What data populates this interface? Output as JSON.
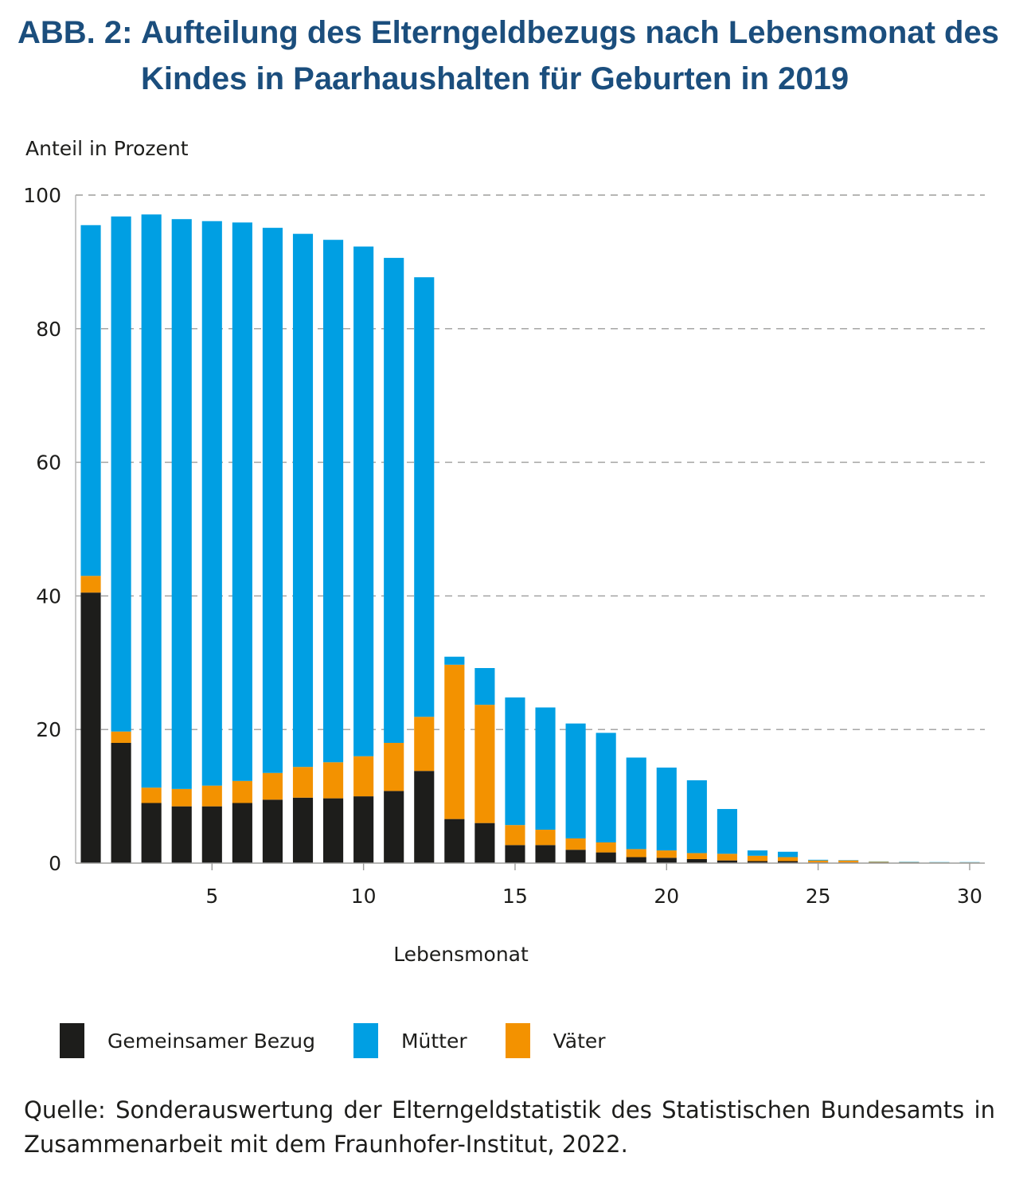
{
  "figure": {
    "label": "ABB. 2:",
    "title": "Aufteilung des Elterngeldbezugs nach Lebensmonat des Kindes in Paarhaushalten für Geburten in 2019",
    "source": "Quelle: Sonderauswertung der Elterngeldstatistik des Statistischen Bundesamts in Zusammenarbeit mit dem Fraunhofer-Institut, 2022."
  },
  "chart_data": {
    "type": "bar",
    "stacked": true,
    "title": "",
    "ylabel": "Anteil in Prozent",
    "xlabel": "Lebensmonat",
    "ylim": [
      0,
      100
    ],
    "xlim": [
      0.5,
      30.5
    ],
    "yticks": [
      0,
      20,
      40,
      60,
      80,
      100
    ],
    "xticks": [
      5,
      10,
      15,
      20,
      25,
      30
    ],
    "grid": "horizontal dashed",
    "legend_position": "bottom",
    "x": [
      1,
      2,
      3,
      4,
      5,
      6,
      7,
      8,
      9,
      10,
      11,
      12,
      13,
      14,
      15,
      16,
      17,
      18,
      19,
      20,
      21,
      22,
      23,
      24,
      25,
      26,
      27,
      28,
      29,
      30
    ],
    "series": [
      {
        "name": "Gemeinsamer Bezug",
        "color": "#1d1d1b",
        "values": [
          40.5,
          18,
          9,
          8.5,
          8.5,
          9,
          9.5,
          9.8,
          9.7,
          10,
          10.8,
          13.8,
          6.6,
          6,
          2.7,
          2.7,
          2,
          1.6,
          0.9,
          0.8,
          0.6,
          0.4,
          0.3,
          0.3,
          0.1,
          0.1,
          0.1,
          0.1,
          0.05,
          0.05
        ]
      },
      {
        "name": "Väter",
        "color": "#f39200",
        "values": [
          2.5,
          1.7,
          2.3,
          2.6,
          3.1,
          3.3,
          4,
          4.6,
          5.4,
          6,
          7.2,
          8.1,
          23.1,
          17.7,
          3,
          2.3,
          1.7,
          1.5,
          1.2,
          1.1,
          0.9,
          1,
          0.8,
          0.6,
          0.3,
          0.3,
          0.1,
          0.05,
          0.05,
          0.05
        ]
      },
      {
        "name": "Mütter",
        "color": "#009fe3",
        "values": [
          52.5,
          77.1,
          85.8,
          85.3,
          84.5,
          83.6,
          81.6,
          79.8,
          78.2,
          76.3,
          72.6,
          65.8,
          1.2,
          5.5,
          19.1,
          18.3,
          17.2,
          16.4,
          13.7,
          12.4,
          10.9,
          6.7,
          0.8,
          0.8,
          0.1,
          0.05,
          0.05,
          0.05,
          0.05,
          0.05
        ]
      }
    ]
  },
  "legend": {
    "items": [
      {
        "label": "Gemeinsamer Bezug",
        "color": "#1d1d1b"
      },
      {
        "label": "Mütter",
        "color": "#009fe3"
      },
      {
        "label": "Väter",
        "color": "#f39200"
      }
    ]
  }
}
